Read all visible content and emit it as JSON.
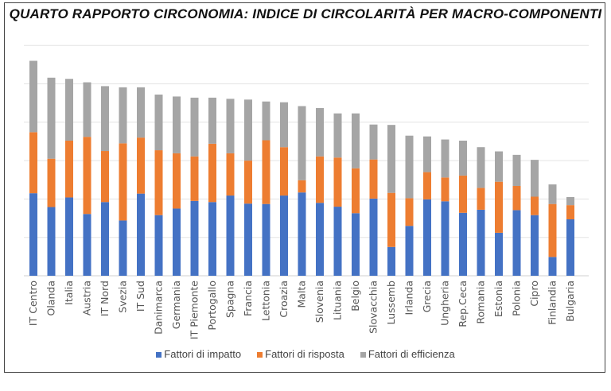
{
  "chart_data": {
    "type": "bar",
    "stacked": true,
    "title": "QUARTO RAPPORTO CIRCONOMIA:  INDICE DI CIRCOLARITÀ PER MACRO-COMPONENTI",
    "xlabel": "",
    "ylabel": "",
    "y_tick_labels_shown": false,
    "grid": true,
    "legend_position": "bottom",
    "ylim": [
      0,
      6
    ],
    "categories": [
      "IT Centro",
      "Olanda",
      "Italia",
      "Austria",
      "IT Nord",
      "Svezia",
      "IT Sud",
      "Danimarca",
      "Germania",
      "IT Piemonte",
      "Portogallo",
      "Spagna",
      "Francia",
      "Lettonia",
      "Croazia",
      "Malta",
      "Slovenia",
      "Lituania",
      "Belgio",
      "Slovacchia",
      "Lussemb",
      "Irlanda",
      "Grecia",
      "Ungheria",
      "Rep.Ceca",
      "Romania",
      "Estonia",
      "Polonia",
      "Cipro",
      "Finlandia",
      "Bulgaria"
    ],
    "series": [
      {
        "name": "Fattori di impatto",
        "color": "#4472c4",
        "values": [
          2.15,
          1.79,
          2.04,
          1.61,
          1.92,
          1.44,
          2.14,
          1.58,
          1.75,
          1.95,
          1.92,
          2.09,
          1.88,
          1.87,
          2.09,
          2.17,
          1.9,
          1.8,
          1.63,
          2.01,
          0.75,
          1.3,
          1.99,
          1.94,
          1.64,
          1.72,
          1.12,
          1.71,
          1.58,
          0.49,
          1.47
        ]
      },
      {
        "name": "Fattori di risposta",
        "color": "#ed7d31",
        "values": [
          1.59,
          1.26,
          1.48,
          2.01,
          1.33,
          2.01,
          1.46,
          1.69,
          1.44,
          1.16,
          1.52,
          1.1,
          1.12,
          1.66,
          1.26,
          0.32,
          1.21,
          1.28,
          1.17,
          1.02,
          1.41,
          0.72,
          0.71,
          0.62,
          0.97,
          0.57,
          1.33,
          0.63,
          0.48,
          1.38,
          0.37
        ]
      },
      {
        "name": "Fattori di efficienza",
        "color": "#a5a5a5",
        "values": [
          1.86,
          2.11,
          1.61,
          1.42,
          1.69,
          1.46,
          1.31,
          1.45,
          1.48,
          1.53,
          1.2,
          1.42,
          1.59,
          1.01,
          1.17,
          1.93,
          1.26,
          1.15,
          1.43,
          0.91,
          1.77,
          1.63,
          0.93,
          0.99,
          0.91,
          1.06,
          0.79,
          0.81,
          0.96,
          0.51,
          0.21
        ]
      }
    ]
  }
}
